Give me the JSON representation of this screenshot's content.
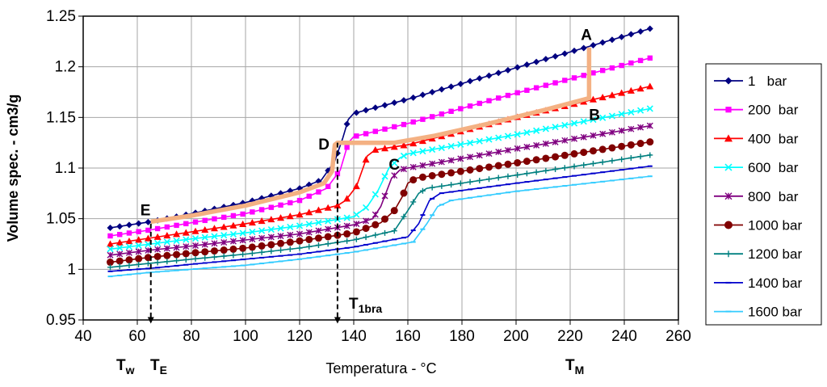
{
  "chart_data": {
    "type": "line",
    "title": "",
    "xlabel": "Temperatura - °C",
    "ylabel": "Volume spec. - cm3/g",
    "xlim": [
      40,
      260
    ],
    "ylim": [
      0.95,
      1.25
    ],
    "xticks": [
      40,
      60,
      80,
      100,
      120,
      140,
      160,
      180,
      200,
      220,
      240,
      260
    ],
    "yticks": [
      0.95,
      1,
      1.05,
      1.1,
      1.15,
      1.2,
      1.25
    ],
    "xtick_labels": [
      "40",
      "60",
      "80",
      "100",
      "120",
      "140",
      "160",
      "180",
      "200",
      "220",
      "240",
      "260"
    ],
    "ytick_labels": [
      "0.95",
      "1",
      "1.05",
      "1.1",
      "1.15",
      "1.2",
      "1.25"
    ],
    "grid": true,
    "legend_position": "right",
    "series": [
      {
        "name": "1   bar",
        "color": "#000080",
        "marker": "diamond",
        "knots": [
          [
            50,
            1.041
          ],
          [
            65,
            1.047
          ],
          [
            80,
            1.055
          ],
          [
            100,
            1.066
          ],
          [
            120,
            1.08
          ],
          [
            128,
            1.088
          ],
          [
            133,
            1.107
          ],
          [
            136,
            1.13
          ],
          [
            138,
            1.148
          ],
          [
            140,
            1.154
          ],
          [
            160,
            1.168
          ],
          [
            200,
            1.199
          ],
          [
            250,
            1.238
          ]
        ]
      },
      {
        "name": "200  bar",
        "color": "#ff00ff",
        "marker": "square",
        "knots": [
          [
            50,
            1.033
          ],
          [
            65,
            1.039
          ],
          [
            80,
            1.046
          ],
          [
            100,
            1.055
          ],
          [
            120,
            1.068
          ],
          [
            130,
            1.08
          ],
          [
            135,
            1.098
          ],
          [
            138,
            1.125
          ],
          [
            140,
            1.131
          ],
          [
            160,
            1.144
          ],
          [
            200,
            1.174
          ],
          [
            250,
            1.209
          ]
        ]
      },
      {
        "name": "400  bar",
        "color": "#ff0000",
        "marker": "triangle",
        "knots": [
          [
            50,
            1.025
          ],
          [
            65,
            1.031
          ],
          [
            80,
            1.037
          ],
          [
            100,
            1.045
          ],
          [
            120,
            1.054
          ],
          [
            134,
            1.063
          ],
          [
            137,
            1.068
          ],
          [
            141,
            1.082
          ],
          [
            145,
            1.112
          ],
          [
            148,
            1.118
          ],
          [
            160,
            1.123
          ],
          [
            200,
            1.15
          ],
          [
            250,
            1.181
          ]
        ]
      },
      {
        "name": "600  bar",
        "color": "#00ffff",
        "marker": "x",
        "knots": [
          [
            50,
            1.02
          ],
          [
            65,
            1.025
          ],
          [
            80,
            1.03
          ],
          [
            100,
            1.036
          ],
          [
            120,
            1.043
          ],
          [
            140,
            1.052
          ],
          [
            145,
            1.062
          ],
          [
            149,
            1.078
          ],
          [
            153,
            1.1
          ],
          [
            157,
            1.11
          ],
          [
            160,
            1.114
          ],
          [
            200,
            1.133
          ],
          [
            250,
            1.159
          ]
        ]
      },
      {
        "name": "800  bar",
        "color": "#800080",
        "marker": "star",
        "knots": [
          [
            50,
            1.014
          ],
          [
            65,
            1.019
          ],
          [
            80,
            1.023
          ],
          [
            100,
            1.029
          ],
          [
            120,
            1.035
          ],
          [
            140,
            1.044
          ],
          [
            147,
            1.05
          ],
          [
            150,
            1.062
          ],
          [
            154,
            1.09
          ],
          [
            157,
            1.098
          ],
          [
            160,
            1.1
          ],
          [
            200,
            1.119
          ],
          [
            250,
            1.142
          ]
        ]
      },
      {
        "name": "1000 bar",
        "color": "#800000",
        "marker": "circle",
        "knots": [
          [
            50,
            1.007
          ],
          [
            65,
            1.012
          ],
          [
            80,
            1.016
          ],
          [
            100,
            1.021
          ],
          [
            120,
            1.028
          ],
          [
            140,
            1.036
          ],
          [
            150,
            1.046
          ],
          [
            155,
            1.058
          ],
          [
            158,
            1.072
          ],
          [
            160,
            1.085
          ],
          [
            163,
            1.09
          ],
          [
            200,
            1.105
          ],
          [
            250,
            1.126
          ]
        ]
      },
      {
        "name": "1200 bar",
        "color": "#008080",
        "marker": "plus",
        "knots": [
          [
            50,
            1.002
          ],
          [
            65,
            1.006
          ],
          [
            80,
            1.01
          ],
          [
            100,
            1.015
          ],
          [
            120,
            1.021
          ],
          [
            140,
            1.029
          ],
          [
            155,
            1.038
          ],
          [
            160,
            1.058
          ],
          [
            164,
            1.075
          ],
          [
            167,
            1.08
          ],
          [
            200,
            1.093
          ],
          [
            250,
            1.113
          ]
        ]
      },
      {
        "name": "1400 bar",
        "color": "#0000cc",
        "marker": "dash",
        "knots": [
          [
            50,
            0.998
          ],
          [
            65,
            1.001
          ],
          [
            80,
            1.005
          ],
          [
            100,
            1.01
          ],
          [
            120,
            1.015
          ],
          [
            140,
            1.022
          ],
          [
            160,
            1.032
          ],
          [
            164,
            1.045
          ],
          [
            168,
            1.068
          ],
          [
            172,
            1.075
          ],
          [
            200,
            1.085
          ],
          [
            250,
            1.102
          ]
        ]
      },
      {
        "name": "1600 bar",
        "color": "#33ccff",
        "marker": "dash",
        "knots": [
          [
            50,
            0.993
          ],
          [
            65,
            0.997
          ],
          [
            80,
            1.0
          ],
          [
            100,
            1.004
          ],
          [
            120,
            1.01
          ],
          [
            140,
            1.017
          ],
          [
            162,
            1.027
          ],
          [
            167,
            1.045
          ],
          [
            171,
            1.062
          ],
          [
            176,
            1.068
          ],
          [
            200,
            1.077
          ],
          [
            250,
            1.092
          ]
        ]
      }
    ],
    "process_path": {
      "color": "#f4b183",
      "points": [
        [
          65,
          1.047
        ],
        [
          80,
          1.053
        ],
        [
          100,
          1.063
        ],
        [
          120,
          1.076
        ],
        [
          129,
          1.085
        ],
        [
          132,
          1.097
        ],
        [
          133,
          1.123
        ],
        [
          134,
          1.125
        ],
        [
          155,
          1.125
        ],
        [
          170,
          1.132
        ],
        [
          190,
          1.144
        ],
        [
          210,
          1.157
        ],
        [
          227,
          1.169
        ],
        [
          227,
          1.219
        ]
      ]
    },
    "annotations": [
      {
        "text": "A",
        "x": 226,
        "y": 1.232
      },
      {
        "text": "B",
        "x": 229,
        "y": 1.153
      },
      {
        "text": "C",
        "x": 155,
        "y": 1.104
      },
      {
        "text": "D",
        "x": 129,
        "y": 1.124
      },
      {
        "text": "E",
        "x": 63,
        "y": 1.059
      }
    ],
    "vlines": [
      {
        "x": 65,
        "from": 1.045,
        "to": 0.948
      },
      {
        "x": 134,
        "from": 1.125,
        "to": 0.948
      }
    ],
    "below_axis_labels": {
      "t1bra": {
        "main": "T",
        "sub": "1bra"
      },
      "tw": {
        "main": "T",
        "sub": "w"
      },
      "te": {
        "main": "T",
        "sub": "E"
      },
      "tm": {
        "main": "T",
        "sub": "M"
      }
    }
  }
}
